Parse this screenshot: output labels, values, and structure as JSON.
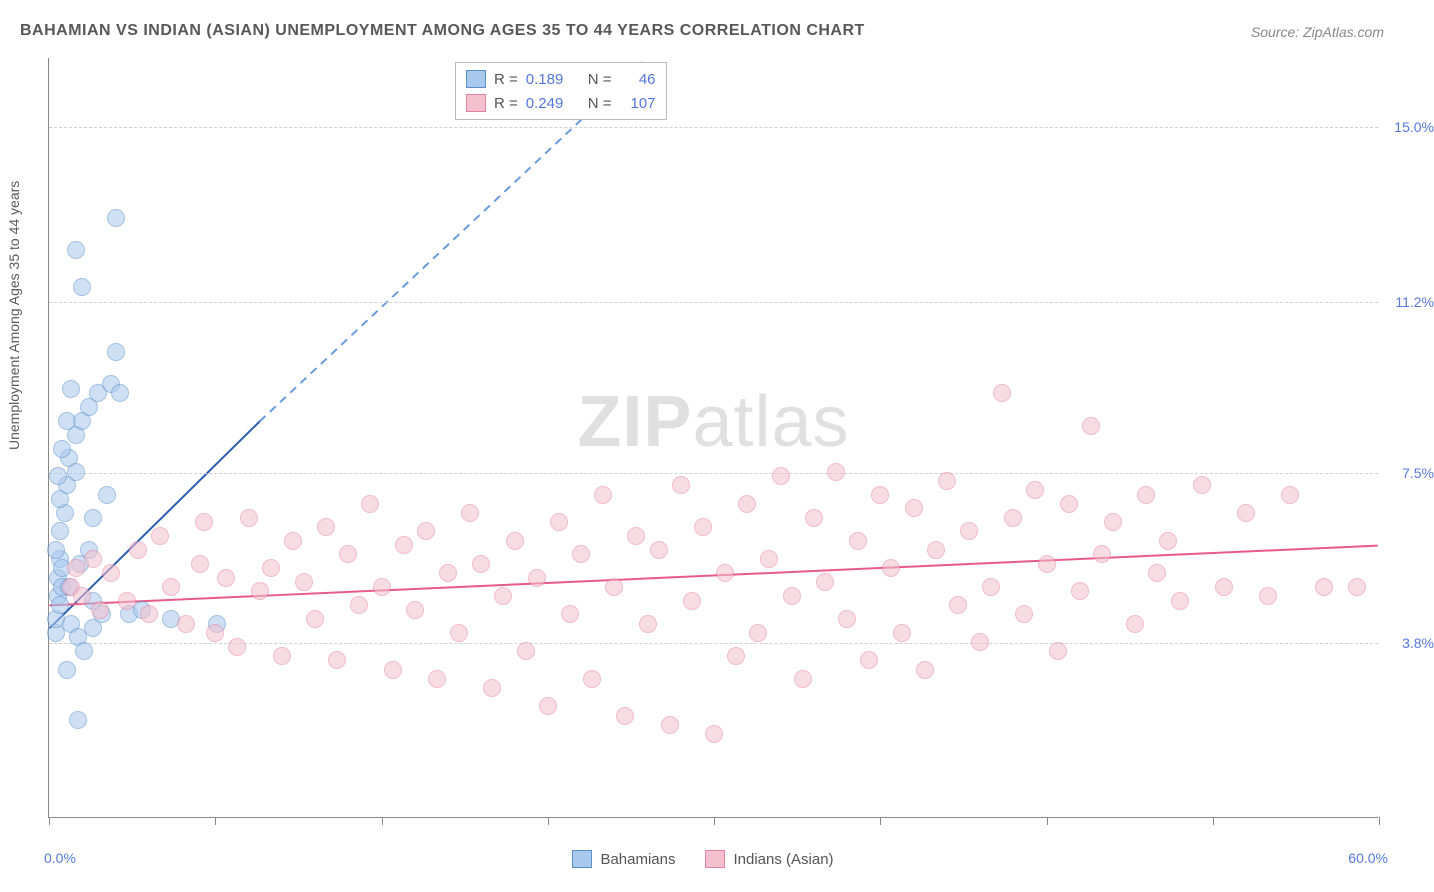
{
  "title": "BAHAMIAN VS INDIAN (ASIAN) UNEMPLOYMENT AMONG AGES 35 TO 44 YEARS CORRELATION CHART",
  "source": "Source: ZipAtlas.com",
  "ylabel": "Unemployment Among Ages 35 to 44 years",
  "watermark_zip": "ZIP",
  "watermark_atlas": "atlas",
  "chart": {
    "type": "scatter",
    "xlim": [
      0,
      60
    ],
    "ylim": [
      0,
      16.5
    ],
    "x_axis_labels": {
      "min": "0.0%",
      "max": "60.0%"
    },
    "y_ticks": [
      {
        "value": 3.8,
        "label": "3.8%"
      },
      {
        "value": 7.5,
        "label": "7.5%"
      },
      {
        "value": 11.2,
        "label": "11.2%"
      },
      {
        "value": 15.0,
        "label": "15.0%"
      }
    ],
    "x_tick_positions": [
      0,
      7.5,
      15,
      22.5,
      30,
      37.5,
      45,
      52.5,
      60
    ],
    "background_color": "#ffffff",
    "grid_color": "#d0d0d0",
    "marker_radius": 9,
    "marker_opacity": 0.55
  },
  "series": [
    {
      "id": "bahamians",
      "label": "Bahamians",
      "fill_color": "#a8c8ee",
      "stroke_color": "#5b8fc9",
      "trend_color": "#2a5db0",
      "trend_dash_color": "#6a9be0",
      "R": "0.189",
      "N": "46",
      "trend_solid": {
        "x1": 0,
        "y1": 4.1,
        "x2": 9.5,
        "y2": 8.6
      },
      "trend_dash": {
        "x1": 9.5,
        "y1": 8.6,
        "x2": 27,
        "y2": 16.5
      },
      "points": [
        [
          0.3,
          4.0
        ],
        [
          0.3,
          4.3
        ],
        [
          0.4,
          4.8
        ],
        [
          0.4,
          5.2
        ],
        [
          0.5,
          5.6
        ],
        [
          0.6,
          5.0
        ],
        [
          0.6,
          5.4
        ],
        [
          0.5,
          6.2
        ],
        [
          0.7,
          6.6
        ],
        [
          0.5,
          6.9
        ],
        [
          0.8,
          7.2
        ],
        [
          0.4,
          7.4
        ],
        [
          0.9,
          7.8
        ],
        [
          0.6,
          8.0
        ],
        [
          1.2,
          8.3
        ],
        [
          0.8,
          8.6
        ],
        [
          1.5,
          8.6
        ],
        [
          1.8,
          8.9
        ],
        [
          2.2,
          9.2
        ],
        [
          1.0,
          9.3
        ],
        [
          2.8,
          9.4
        ],
        [
          3.2,
          9.2
        ],
        [
          0.5,
          4.6
        ],
        [
          1.0,
          4.2
        ],
        [
          1.3,
          3.9
        ],
        [
          1.6,
          3.6
        ],
        [
          2.0,
          4.1
        ],
        [
          2.4,
          4.4
        ],
        [
          2.0,
          4.7
        ],
        [
          0.9,
          5.0
        ],
        [
          1.4,
          5.5
        ],
        [
          1.8,
          5.8
        ],
        [
          3.6,
          4.4
        ],
        [
          4.2,
          4.5
        ],
        [
          2.0,
          6.5
        ],
        [
          2.6,
          7.0
        ],
        [
          1.2,
          7.5
        ],
        [
          3.0,
          10.1
        ],
        [
          1.5,
          11.5
        ],
        [
          1.2,
          12.3
        ],
        [
          3.0,
          13.0
        ],
        [
          0.8,
          3.2
        ],
        [
          1.3,
          2.1
        ],
        [
          5.5,
          4.3
        ],
        [
          7.6,
          4.2
        ],
        [
          0.3,
          5.8
        ]
      ]
    },
    {
      "id": "indians",
      "label": "Indians (Asian)",
      "fill_color": "#f4c0cf",
      "stroke_color": "#e4849f",
      "trend_color": "#e85b88",
      "R": "0.249",
      "N": "107",
      "trend_solid": {
        "x1": 0,
        "y1": 4.6,
        "x2": 60,
        "y2": 5.9
      },
      "points": [
        [
          1.0,
          5.0
        ],
        [
          1.2,
          5.4
        ],
        [
          1.5,
          4.8
        ],
        [
          2.0,
          5.6
        ],
        [
          2.3,
          4.5
        ],
        [
          2.8,
          5.3
        ],
        [
          3.5,
          4.7
        ],
        [
          4.0,
          5.8
        ],
        [
          4.5,
          4.4
        ],
        [
          5.0,
          6.1
        ],
        [
          5.5,
          5.0
        ],
        [
          6.2,
          4.2
        ],
        [
          6.8,
          5.5
        ],
        [
          7.0,
          6.4
        ],
        [
          7.5,
          4.0
        ],
        [
          8.0,
          5.2
        ],
        [
          8.5,
          3.7
        ],
        [
          9.0,
          6.5
        ],
        [
          9.5,
          4.9
        ],
        [
          10.0,
          5.4
        ],
        [
          10.5,
          3.5
        ],
        [
          11.0,
          6.0
        ],
        [
          11.5,
          5.1
        ],
        [
          12.0,
          4.3
        ],
        [
          12.5,
          6.3
        ],
        [
          13.0,
          3.4
        ],
        [
          13.5,
          5.7
        ],
        [
          14.0,
          4.6
        ],
        [
          14.5,
          6.8
        ],
        [
          15.0,
          5.0
        ],
        [
          15.5,
          3.2
        ],
        [
          16.0,
          5.9
        ],
        [
          16.5,
          4.5
        ],
        [
          17.0,
          6.2
        ],
        [
          17.5,
          3.0
        ],
        [
          18.0,
          5.3
        ],
        [
          18.5,
          4.0
        ],
        [
          19.0,
          6.6
        ],
        [
          19.5,
          5.5
        ],
        [
          20.0,
          2.8
        ],
        [
          20.5,
          4.8
        ],
        [
          21.0,
          6.0
        ],
        [
          21.5,
          3.6
        ],
        [
          22.0,
          5.2
        ],
        [
          22.5,
          2.4
        ],
        [
          23.0,
          6.4
        ],
        [
          23.5,
          4.4
        ],
        [
          24.0,
          5.7
        ],
        [
          24.5,
          3.0
        ],
        [
          25.0,
          7.0
        ],
        [
          25.5,
          5.0
        ],
        [
          26.0,
          2.2
        ],
        [
          26.5,
          6.1
        ],
        [
          27.0,
          4.2
        ],
        [
          27.5,
          5.8
        ],
        [
          28.0,
          2.0
        ],
        [
          28.5,
          7.2
        ],
        [
          29.0,
          4.7
        ],
        [
          29.5,
          6.3
        ],
        [
          30.0,
          1.8
        ],
        [
          30.5,
          5.3
        ],
        [
          31.0,
          3.5
        ],
        [
          31.5,
          6.8
        ],
        [
          32.0,
          4.0
        ],
        [
          32.5,
          5.6
        ],
        [
          33.0,
          7.4
        ],
        [
          33.5,
          4.8
        ],
        [
          34.0,
          3.0
        ],
        [
          34.5,
          6.5
        ],
        [
          35.0,
          5.1
        ],
        [
          35.5,
          7.5
        ],
        [
          36.0,
          4.3
        ],
        [
          36.5,
          6.0
        ],
        [
          37.0,
          3.4
        ],
        [
          37.5,
          7.0
        ],
        [
          38.0,
          5.4
        ],
        [
          38.5,
          4.0
        ],
        [
          39.0,
          6.7
        ],
        [
          39.5,
          3.2
        ],
        [
          40.0,
          5.8
        ],
        [
          40.5,
          7.3
        ],
        [
          41.0,
          4.6
        ],
        [
          41.5,
          6.2
        ],
        [
          42.0,
          3.8
        ],
        [
          42.5,
          5.0
        ],
        [
          43.0,
          9.2
        ],
        [
          43.5,
          6.5
        ],
        [
          44.0,
          4.4
        ],
        [
          44.5,
          7.1
        ],
        [
          45.0,
          5.5
        ],
        [
          45.5,
          3.6
        ],
        [
          46.0,
          6.8
        ],
        [
          46.5,
          4.9
        ],
        [
          47.0,
          8.5
        ],
        [
          47.5,
          5.7
        ],
        [
          48.0,
          6.4
        ],
        [
          49.0,
          4.2
        ],
        [
          49.5,
          7.0
        ],
        [
          50.0,
          5.3
        ],
        [
          50.5,
          6.0
        ],
        [
          51.0,
          4.7
        ],
        [
          52.0,
          7.2
        ],
        [
          53.0,
          5.0
        ],
        [
          54.0,
          6.6
        ],
        [
          55.0,
          4.8
        ],
        [
          56.0,
          7.0
        ],
        [
          57.5,
          5.0
        ],
        [
          59.0,
          5.0
        ]
      ]
    }
  ],
  "legend_top_label_R": "R =",
  "legend_top_label_N": "N ="
}
